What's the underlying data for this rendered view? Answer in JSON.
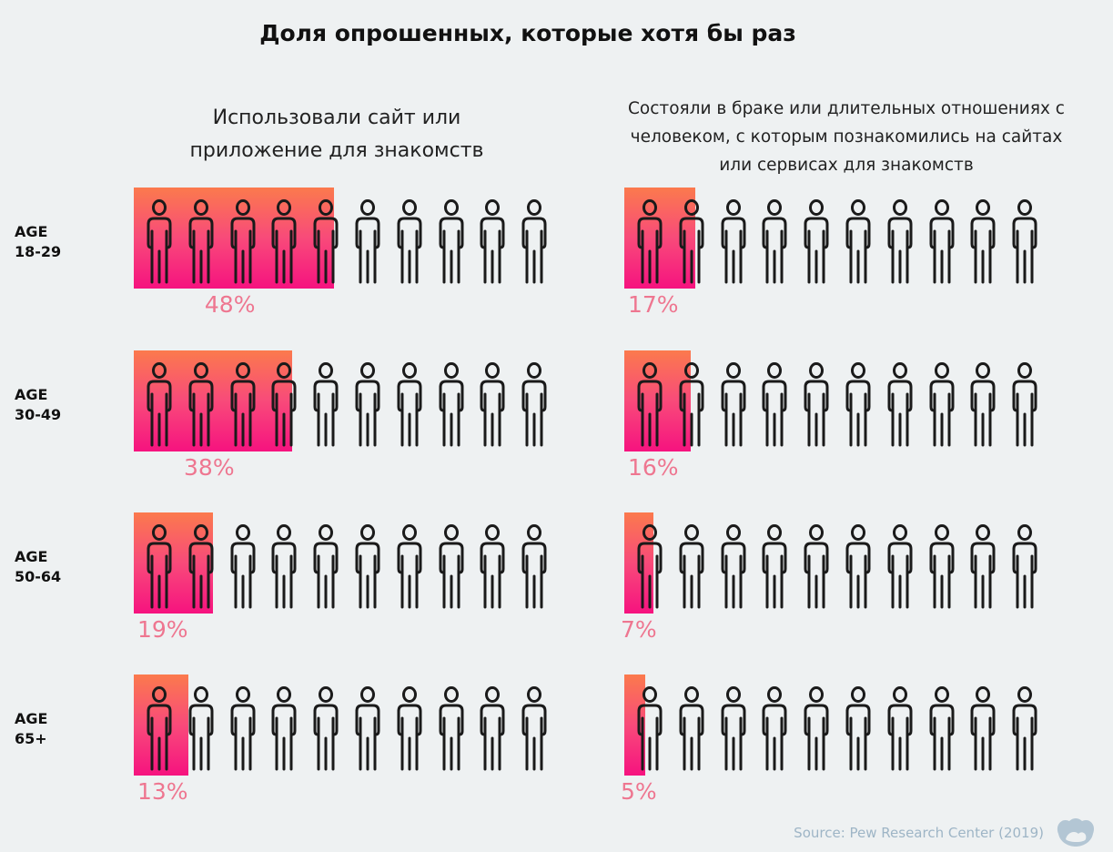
{
  "title": "Доля опрошенных, которые хотя бы раз",
  "columns": [
    {
      "title_lines": [
        "Использовали сайт или",
        "приложение для знакомств"
      ]
    },
    {
      "title_lines": [
        "Состояли в браке или длительных отношениях с",
        "человеком, с которым познакомились на сайтах",
        "или сервисах для знакомств"
      ]
    }
  ],
  "source": "Source: Pew Research Center (2019)",
  "icons_per_row": 10,
  "colors": {
    "fill_top": "#fb7a4d",
    "fill_bottom": "#f6137f",
    "label": "#ee7690",
    "icon_stroke": "#1a1a1a"
  },
  "chart_data": {
    "type": "bar",
    "title": "Доля опрошенных, которые хотя бы раз",
    "categories": [
      "AGE 18-29",
      "AGE 30-49",
      "AGE 50-64",
      "AGE 65+"
    ],
    "category_lines": [
      [
        "AGE",
        "18-29"
      ],
      [
        "AGE",
        "30-49"
      ],
      [
        "AGE",
        "50-64"
      ],
      [
        "AGE",
        "65+"
      ]
    ],
    "series": [
      {
        "name": "Использовали сайт или приложение для знакомств",
        "values": [
          48,
          38,
          19,
          13
        ],
        "labels": [
          "48%",
          "38%",
          "19%",
          "13%"
        ]
      },
      {
        "name": "Состояли в браке или длительных отношениях с человеком, с которым познакомились на сайтах или сервисах для знакомств",
        "values": [
          17,
          16,
          7,
          5
        ],
        "labels": [
          "17%",
          "16%",
          "7%",
          "5%"
        ]
      }
    ],
    "unit": "%",
    "ylim": [
      0,
      100
    ],
    "xlabel": "",
    "ylabel": ""
  }
}
